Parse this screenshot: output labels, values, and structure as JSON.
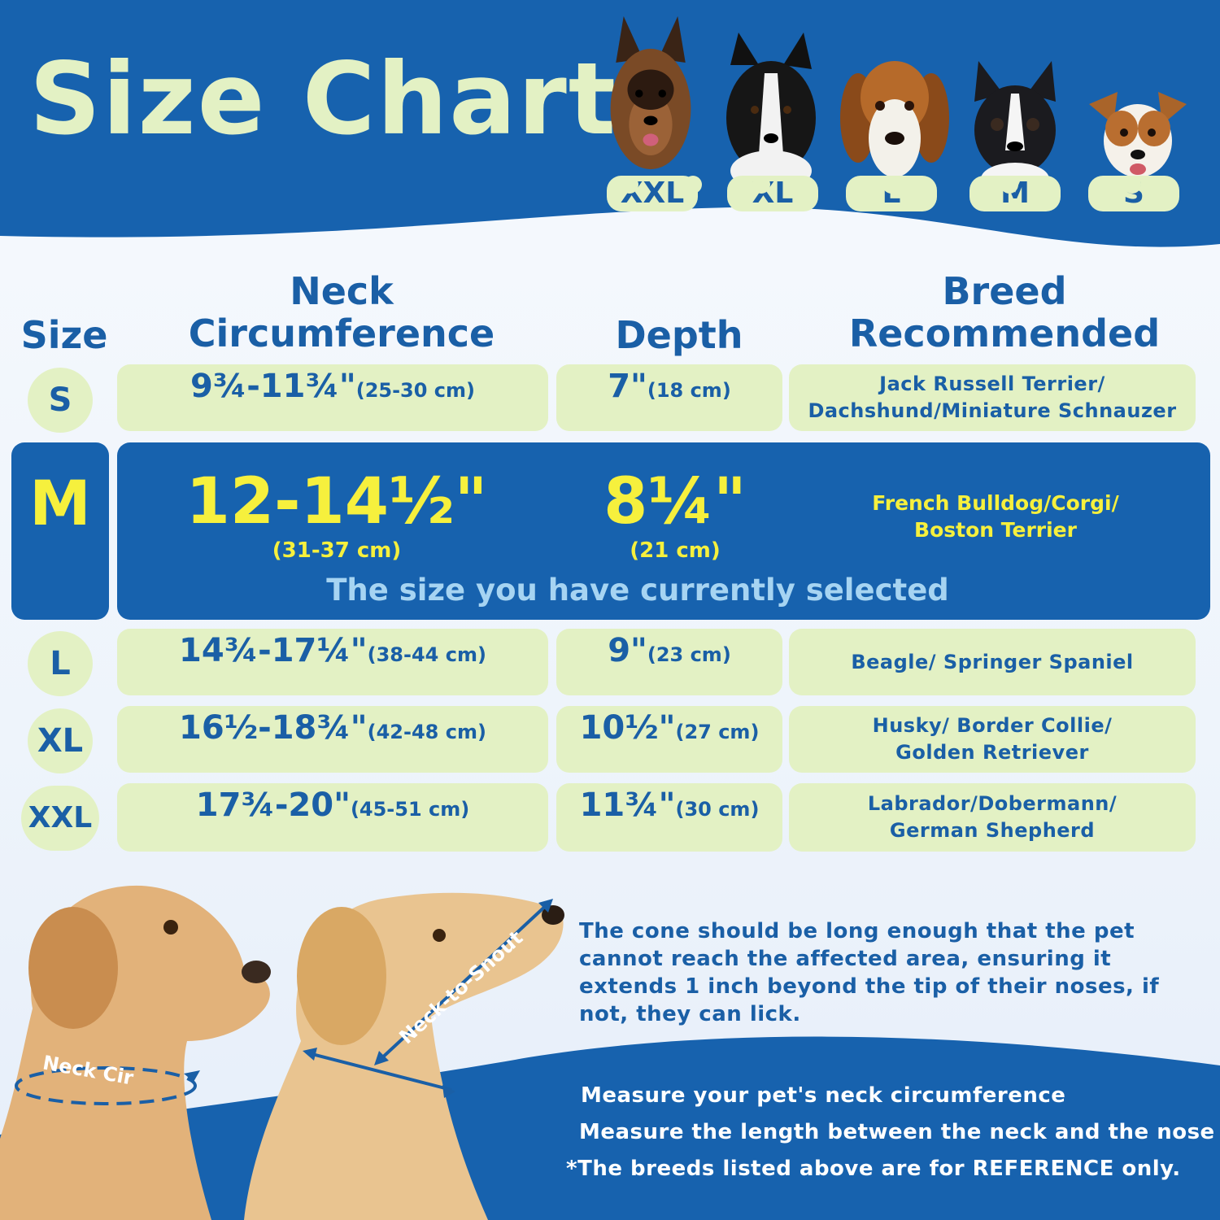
{
  "title": "Size Chart",
  "dogs": [
    {
      "label": "XXL",
      "icon": "german-shepherd-photo"
    },
    {
      "label": "XL",
      "icon": "border-collie-photo"
    },
    {
      "label": "L",
      "icon": "beagle-photo"
    },
    {
      "label": "M",
      "icon": "boston-terrier-photo"
    },
    {
      "label": "S",
      "icon": "jack-russell-photo"
    }
  ],
  "headers": {
    "size": "Size",
    "neck_line1": "Neck",
    "neck_line2": "Circumference",
    "depth": "Depth",
    "breed_line1": "Breed",
    "breed_line2": "Recommended"
  },
  "rows": [
    {
      "size": "S",
      "neck": "9¾-11¾\"",
      "neck_cm": "(25-30 cm)",
      "depth": "7\"",
      "depth_cm": "(18 cm)",
      "breed_line1": "Jack Russell Terrier/",
      "breed_line2": "Dachshund/Miniature Schnauzer"
    },
    {
      "size": "M",
      "neck": "12-14½\"",
      "neck_cm": "(31-37 cm)",
      "depth": "8¼\"",
      "depth_cm": "(21 cm)",
      "breed_line1": "French Bulldog/Corgi/",
      "breed_line2": "Boston Terrier",
      "selected_text": "The size you have currently selected"
    },
    {
      "size": "L",
      "neck": "14¾-17¼\"",
      "neck_cm": "(38-44 cm)",
      "depth": "9\"",
      "depth_cm": "(23 cm)",
      "breed_line1": "Beagle/ Springer Spaniel",
      "breed_line2": ""
    },
    {
      "size": "XL",
      "neck": "16½-18¾\"",
      "neck_cm": "(42-48 cm)",
      "depth": "10½\"",
      "depth_cm": "(27 cm)",
      "breed_line1": "Husky/ Border Collie/",
      "breed_line2": "Golden Retriever"
    },
    {
      "size": "XXL",
      "neck": "17¾-20\"",
      "neck_cm": "(45-51 cm)",
      "depth": "11¾\"",
      "depth_cm": "(30 cm)",
      "breed_line1": "Labrador/Dobermann/",
      "breed_line2": "German Shepherd"
    }
  ],
  "measure_labels": {
    "neck_cir": "Neck Cir",
    "neck_to_snout": "Neck-to-Snout"
  },
  "note": "The cone should be long enough that the pet cannot reach the affected area, ensuring it extends 1 inch beyond the tip of their noses, if not, they can lick.",
  "tips": [
    "Measure your pet's neck circumference",
    "Measure the length between the neck and the nose",
    "*The breeds listed above are for REFERENCE only."
  ],
  "colors": {
    "blue": "#1762ae",
    "pale_green": "#e3f1c4",
    "yellow": "#f6f03d",
    "text_blue": "#1a5fa6"
  }
}
